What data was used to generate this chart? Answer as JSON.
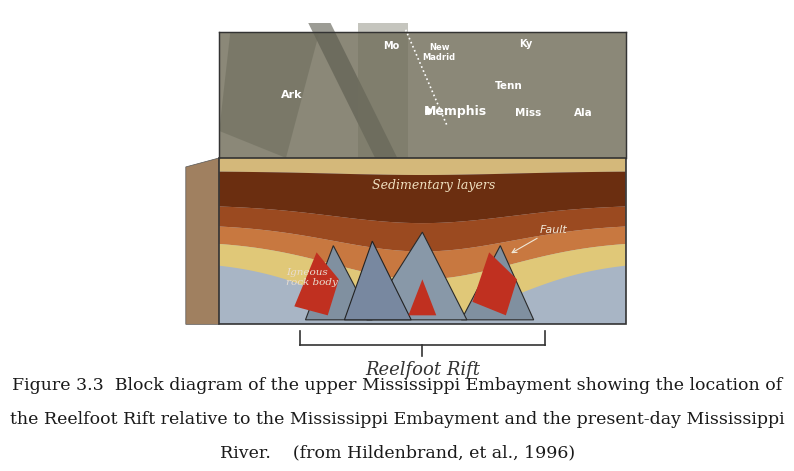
{
  "background_color": "#ffffff",
  "caption_line1": "Figure 3.3  Block diagram of the upper Mississippi Embayment showing the location of",
  "caption_line2": "the Reelfoot Rift relative to the Mississippi Embayment and the present-day Mississippi",
  "caption_line3": "River.    (from Hildenbrand, et al., 1996)",
  "caption_fontsize": 12.5,
  "caption_color": "#1a1a1a",
  "brace_label": "Reelfoot Rift",
  "brace_label_fontsize": 13,
  "brace_color": "#333333",
  "sedimentary_label": "Sedimentary layers",
  "fault_label": "Fault",
  "igneous_label": "Igneous\nrock body"
}
